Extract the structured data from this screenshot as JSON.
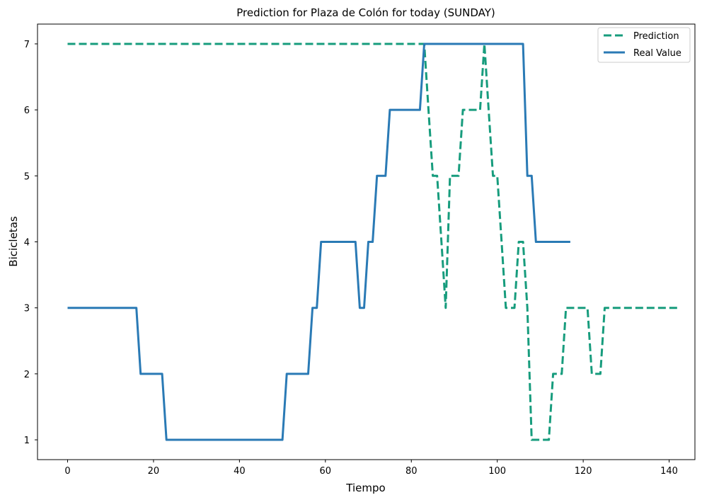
{
  "chart_data": {
    "type": "line",
    "title": "Prediction for Plaza de Colón for today (SUNDAY)",
    "xlabel": "Tiempo",
    "ylabel": "Bicicletas",
    "xlim": [
      -7,
      146
    ],
    "ylim": [
      0.7,
      7.3
    ],
    "xticks": [
      0,
      20,
      40,
      60,
      80,
      100,
      120,
      140
    ],
    "yticks": [
      1,
      2,
      3,
      4,
      5,
      6,
      7
    ],
    "grid": false,
    "legend_position": "top-right",
    "series": [
      {
        "name": "Prediction",
        "color": "#179c7d",
        "style": "dashed",
        "points": [
          [
            0,
            7
          ],
          [
            83,
            7
          ],
          [
            84,
            6
          ],
          [
            85,
            5
          ],
          [
            86,
            5
          ],
          [
            87,
            4
          ],
          [
            88,
            3
          ],
          [
            89,
            5
          ],
          [
            91,
            5
          ],
          [
            92,
            6
          ],
          [
            96,
            6
          ],
          [
            97,
            7
          ],
          [
            98,
            6
          ],
          [
            99,
            5
          ],
          [
            100,
            5
          ],
          [
            101,
            4
          ],
          [
            102,
            3
          ],
          [
            104,
            3
          ],
          [
            105,
            4
          ],
          [
            106,
            4
          ],
          [
            107,
            3
          ],
          [
            108,
            1
          ],
          [
            112,
            1
          ],
          [
            113,
            2
          ],
          [
            115,
            2
          ],
          [
            116,
            3
          ],
          [
            121,
            3
          ],
          [
            122,
            2
          ],
          [
            124,
            2
          ],
          [
            125,
            3
          ],
          [
            142,
            3
          ]
        ]
      },
      {
        "name": "Real Value",
        "color": "#2a7ab5",
        "style": "solid",
        "points": [
          [
            0,
            3
          ],
          [
            16,
            3
          ],
          [
            17,
            2
          ],
          [
            22,
            2
          ],
          [
            23,
            1
          ],
          [
            50,
            1
          ],
          [
            51,
            2
          ],
          [
            56,
            2
          ],
          [
            57,
            3
          ],
          [
            58,
            3
          ],
          [
            59,
            4
          ],
          [
            67,
            4
          ],
          [
            68,
            3
          ],
          [
            69,
            3
          ],
          [
            70,
            4
          ],
          [
            71,
            4
          ],
          [
            72,
            5
          ],
          [
            74,
            5
          ],
          [
            75,
            6
          ],
          [
            82,
            6
          ],
          [
            83,
            7
          ],
          [
            106,
            7
          ],
          [
            107,
            5
          ],
          [
            108,
            5
          ],
          [
            109,
            4
          ],
          [
            117,
            4
          ]
        ]
      }
    ]
  }
}
